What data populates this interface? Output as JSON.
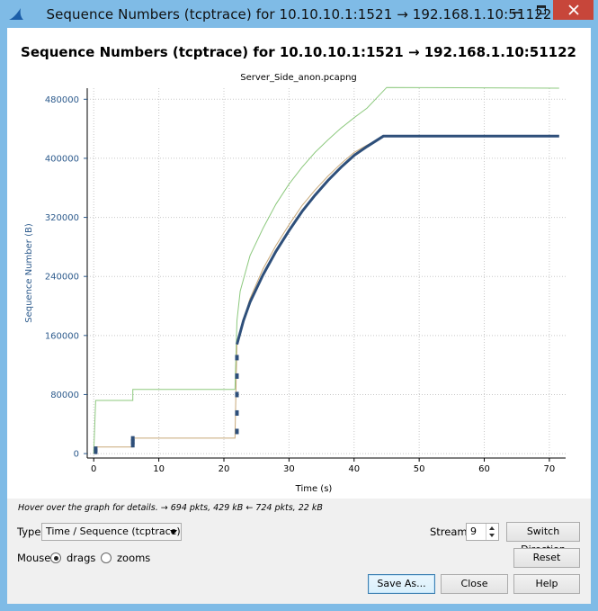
{
  "window": {
    "title": "Sequence Numbers (tcptrace) for 10.10.10.1:1521 → 192.168.1.10:51122",
    "controls": {
      "minimize": "–",
      "maximize": "□",
      "close": "✕"
    }
  },
  "graph": {
    "title": "Sequence Numbers (tcptrace) for 10.10.10.1:1521 → 192.168.1.10:51122",
    "subtitle": "Server_Side_anon.pcapng",
    "axis_color": "#2c5a8c"
  },
  "chart_data": {
    "type": "line",
    "title": "Sequence Numbers (tcptrace) for 10.10.10.1:1521 → 192.168.1.10:51122",
    "subtitle": "Server_Side_anon.pcapng",
    "xlabel": "Time (s)",
    "ylabel": "Sequence Number (B)",
    "xlim": [
      0,
      72
    ],
    "ylim": [
      0,
      480000
    ],
    "xticks": [
      0,
      10,
      20,
      30,
      40,
      50,
      60,
      70
    ],
    "yticks": [
      0,
      80000,
      160000,
      240000,
      320000,
      400000,
      480000
    ],
    "ytick_labels": [
      "0",
      "80000",
      "160000",
      "240000",
      "320000",
      "400000",
      "480000"
    ],
    "grid": true,
    "series": [
      {
        "color": "#8dc97e",
        "points": [
          [
            0,
            0
          ],
          [
            0.3,
            72000
          ],
          [
            6,
            72000
          ],
          [
            6,
            87000
          ],
          [
            21.7,
            87000
          ],
          [
            22,
            180000
          ],
          [
            22.5,
            220000
          ],
          [
            24,
            268000
          ],
          [
            26,
            305000
          ],
          [
            28,
            338000
          ],
          [
            30,
            365000
          ],
          [
            32,
            388000
          ],
          [
            34,
            408000
          ],
          [
            36,
            425000
          ],
          [
            38,
            441000
          ],
          [
            40,
            455000
          ],
          [
            42,
            468000
          ],
          [
            45,
            496000
          ],
          [
            71.5,
            495000
          ]
        ]
      },
      {
        "color": "#c8a878",
        "points": [
          [
            0,
            9000
          ],
          [
            0.3,
            9000
          ],
          [
            6,
            9000
          ],
          [
            6,
            21000
          ],
          [
            21.7,
            21000
          ],
          [
            22,
            150000
          ],
          [
            24,
            210000
          ],
          [
            26,
            250000
          ],
          [
            28,
            282000
          ],
          [
            30,
            310000
          ],
          [
            32,
            336000
          ],
          [
            34,
            357000
          ],
          [
            36,
            376000
          ],
          [
            38,
            393000
          ],
          [
            40,
            408000
          ],
          [
            42,
            418000
          ],
          [
            45,
            431000
          ],
          [
            71.5,
            431000
          ]
        ]
      },
      {
        "color": "#2e4f7a",
        "points": [
          [
            22,
            148000
          ],
          [
            23,
            180000
          ],
          [
            24,
            205000
          ],
          [
            26,
            242000
          ],
          [
            28,
            274000
          ],
          [
            30,
            302000
          ],
          [
            32,
            328000
          ],
          [
            34,
            350000
          ],
          [
            36,
            370000
          ],
          [
            38,
            388000
          ],
          [
            40,
            404000
          ],
          [
            42,
            416000
          ],
          [
            44.5,
            430000
          ],
          [
            71.5,
            430000
          ]
        ]
      }
    ]
  },
  "hover_text": "Hover over the graph for details. → 694 pkts, 429 kB ← 724 pkts, 22 kB",
  "controls": {
    "type_label": "Type",
    "type_value": "Time / Sequence (tcptrace)",
    "stream_label": "Stream",
    "stream_value": "9",
    "switch_direction": "Switch Direction",
    "mouse_label": "Mouse",
    "mouse_drags": "drags",
    "mouse_zooms": "zooms",
    "mouse_selected": "drags",
    "reset": "Reset",
    "save_as": "Save As...",
    "close": "Close",
    "help": "Help"
  }
}
